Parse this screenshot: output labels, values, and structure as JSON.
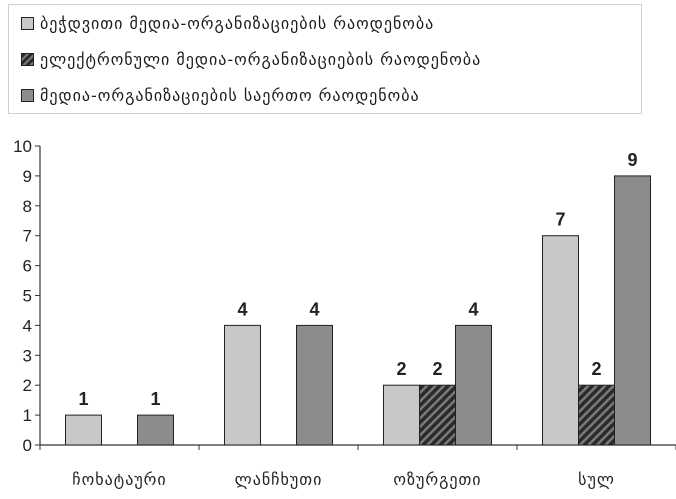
{
  "chart_data": {
    "type": "bar",
    "categories": [
      "ჩოხატაური",
      "ლანჩხუთი",
      "ოზურგეთი",
      "სულ"
    ],
    "series": [
      {
        "name": "ბეჭდვითი მედია-ორგანიზაციების რაოდენობა",
        "values": [
          1,
          4,
          2,
          7
        ],
        "color": "#c8c8c8",
        "pattern": "solid"
      },
      {
        "name": "ელექტრონული მედია-ორგანიზაციების რაოდენობა",
        "values": [
          0,
          0,
          2,
          2
        ],
        "color": "#4a4a4a",
        "pattern": "hatched"
      },
      {
        "name": "მედია-ორგანიზაციების საერთო რაოდენობა",
        "values": [
          1,
          4,
          4,
          9
        ],
        "color": "#8c8c8c",
        "pattern": "solid"
      }
    ],
    "y_ticks": [
      "0",
      "1",
      "2",
      "3",
      "4",
      "5",
      "6",
      "7",
      "8",
      "9",
      "10"
    ],
    "ylim": [
      0,
      10
    ],
    "grid": false,
    "legend_position": "top"
  }
}
